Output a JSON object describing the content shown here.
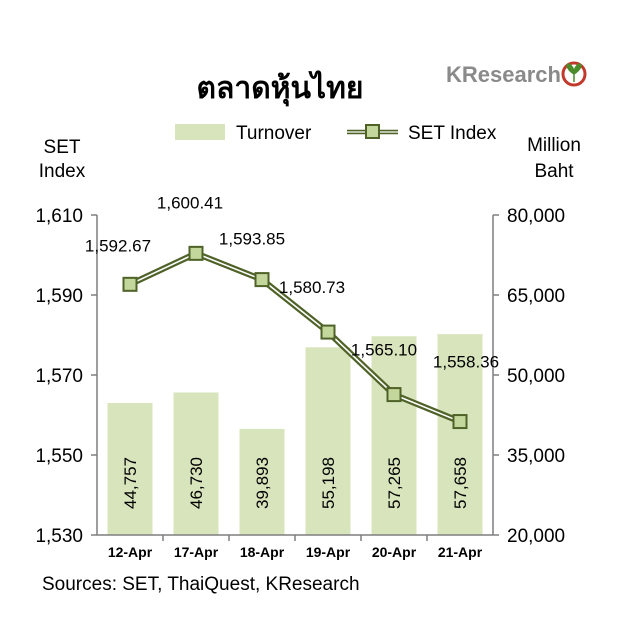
{
  "header": {
    "title": "ตลาดหุ้นไทย",
    "brand": "KResearch"
  },
  "legend": {
    "turnover": "Turnover",
    "set_index": "SET Index"
  },
  "axes": {
    "left_title_line1": "SET",
    "left_title_line2": "Index",
    "right_title_line1": "Million",
    "right_title_line2": "Baht"
  },
  "source": "Sources: SET, ThaiQuest, KResearch",
  "colors": {
    "bar": "#d8e4bc",
    "line": "#4f6228",
    "marker_fill": "#c3d69b",
    "axis": "#7f7f7f",
    "logo_ring": "#c0392b",
    "logo_leaf": "#4a8c2a"
  },
  "chart_data": {
    "type": "bar+line",
    "categories": [
      "12-Apr",
      "17-Apr",
      "18-Apr",
      "19-Apr",
      "20-Apr",
      "21-Apr"
    ],
    "series": [
      {
        "name": "Turnover",
        "type": "bar",
        "axis": "right",
        "values": [
          44757,
          46730,
          39893,
          55198,
          57265,
          57658
        ],
        "labels": [
          "44,757",
          "46,730",
          "39,893",
          "55,198",
          "57,265",
          "57,658"
        ]
      },
      {
        "name": "SET Index",
        "type": "line",
        "axis": "left",
        "values": [
          1592.67,
          1600.41,
          1593.85,
          1580.73,
          1565.1,
          1558.36
        ],
        "labels": [
          "1,592.67",
          "1,600.41",
          "1,593.85",
          "1,580.73",
          "1,565.10",
          "1,558.36"
        ]
      }
    ],
    "left_axis": {
      "min": 1530,
      "max": 1610,
      "ticks": [
        "1,530",
        "1,550",
        "1,570",
        "1,590",
        "1,610"
      ]
    },
    "right_axis": {
      "min": 20000,
      "max": 80000,
      "ticks": [
        "20,000",
        "35,000",
        "50,000",
        "65,000",
        "80,000"
      ]
    },
    "grid": false,
    "legend_position": "top"
  }
}
